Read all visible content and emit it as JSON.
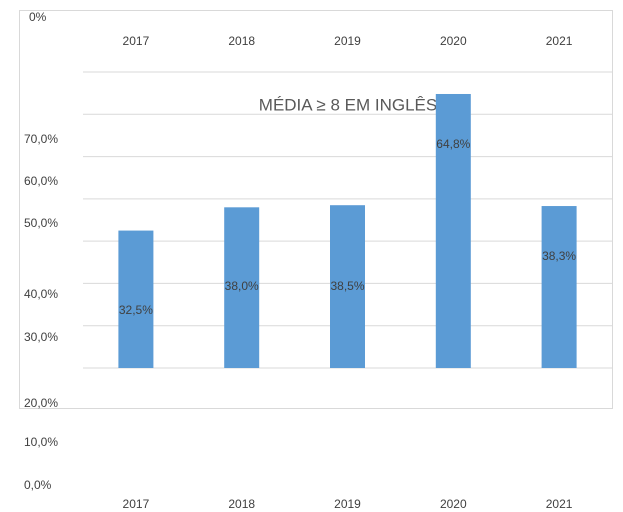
{
  "chart_data": {
    "type": "bar",
    "title": "MÉDIA ≥ 8 EM INGLÊS",
    "categories": [
      "2017",
      "2018",
      "2019",
      "2020",
      "2021"
    ],
    "values": [
      32.5,
      38.0,
      38.5,
      64.8,
      38.3
    ],
    "value_labels": [
      "32,5%",
      "38,0%",
      "38,5%",
      "64,8%",
      "38,3%"
    ],
    "color": "#5b9bd5",
    "corner_label": "0%",
    "ylim": [
      0,
      70
    ],
    "yticks": [
      {
        "value": 0,
        "label": "0,0%"
      },
      {
        "value": 10,
        "label": "10,0%"
      },
      {
        "value": 20,
        "label": "20,0%"
      },
      {
        "value": 30,
        "label": "30,0%"
      },
      {
        "value": 40,
        "label": "40,0%"
      },
      {
        "value": 50,
        "label": "50,0%"
      },
      {
        "value": 60,
        "label": "60,0%"
      },
      {
        "value": 70,
        "label": "70,0%"
      }
    ],
    "grid": true
  }
}
